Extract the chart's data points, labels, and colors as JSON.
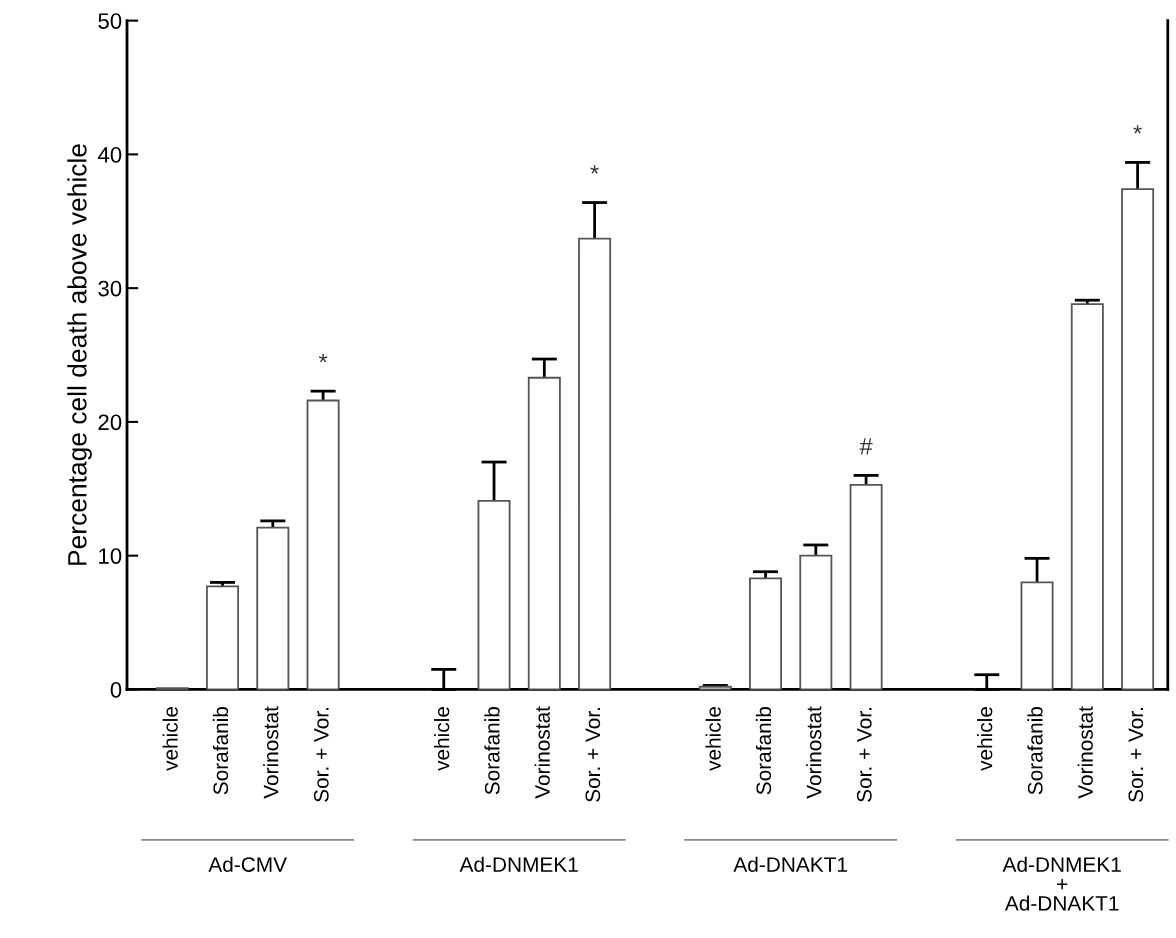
{
  "chart_data": {
    "type": "bar",
    "ylabel": "Percentage cell death above vehicle",
    "categories": [
      "vehicle",
      "Sorafanib",
      "Vorinostat",
      "Sor. + Vor.",
      "vehicle",
      "Sorafanib",
      "Vorinostat",
      "Sor. + Vor.",
      "vehicle",
      "Sorafanib",
      "Vorinostat",
      "Sor. + Vor.",
      "vehicle",
      "Sorafanib",
      "Vorinostat",
      "Sor. + Vor."
    ],
    "values": [
      0.1,
      7.7,
      12.1,
      21.6,
      0,
      14.1,
      23.3,
      33.7,
      0.2,
      8.3,
      10.0,
      15.3,
      0,
      8.0,
      28.8,
      37.4
    ],
    "errors": [
      null,
      0.3,
      0.5,
      0.7,
      [
        0,
        1.5
      ],
      2.9,
      1.4,
      2.7,
      0.1,
      0.5,
      0.8,
      0.7,
      [
        0,
        1.1
      ],
      1.8,
      0.3,
      2.0
    ],
    "value_labels": [
      null,
      null,
      null,
      "*",
      null,
      null,
      null,
      "*",
      null,
      null,
      null,
      "#",
      null,
      null,
      null,
      "*"
    ],
    "color": "#ffffff",
    "ylim": [
      0,
      50
    ],
    "yticks": [
      0,
      10,
      20,
      30,
      40,
      50
    ],
    "annotations": [
      "Ad-CMV",
      "Ad-DNMEK1",
      "Ad-DNAKT1",
      "Ad-DNMEK1\n+\nAd-DNAKT1"
    ]
  }
}
